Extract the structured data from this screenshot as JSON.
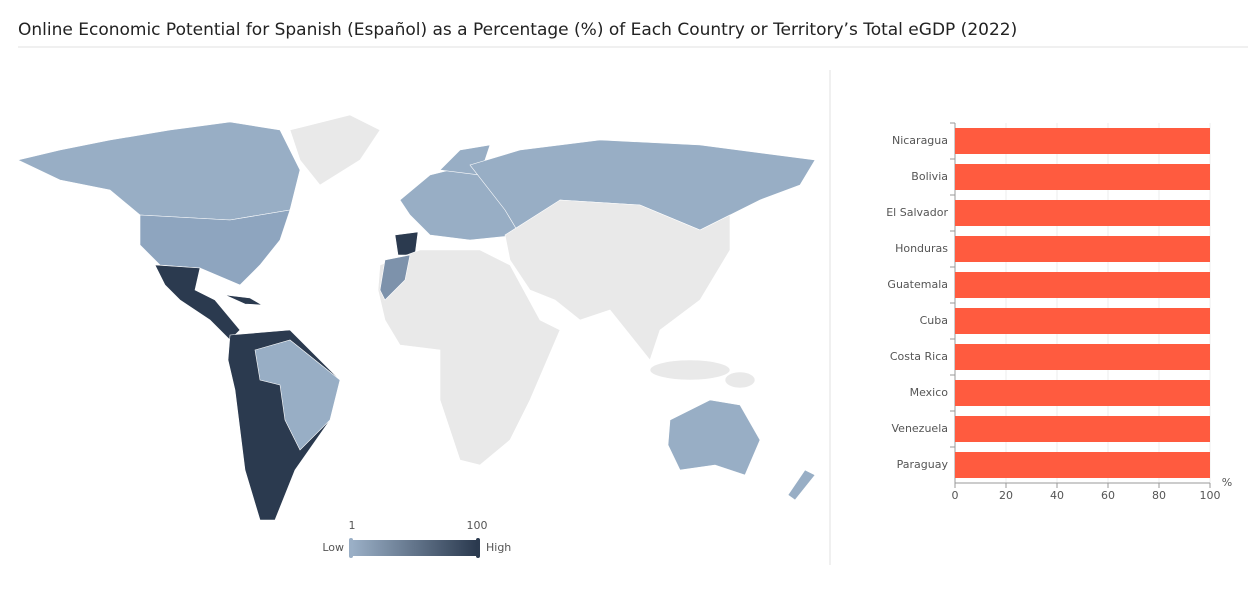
{
  "title": "Online Economic Potential for Spanish (Español) as a Percentage (%) of Each Country or Territory’s Total eGDP (2022)",
  "chart_data": [
    {
      "type": "map",
      "visual_range": [
        1,
        100
      ],
      "low_label": "Low",
      "high_label": "High",
      "colors": [
        "#9aafc6",
        "#2b3a4f"
      ]
    },
    {
      "type": "bar",
      "orientation": "horizontal",
      "categories": [
        "Nicaragua",
        "Bolivia",
        "El Salvador",
        "Honduras",
        "Guatemala",
        "Cuba",
        "Costa Rica",
        "Mexico",
        "Venezuela",
        "Paraguay"
      ],
      "values": [
        100,
        100,
        100,
        100,
        100,
        100,
        100,
        100,
        100,
        100
      ],
      "color": "#ff5b3f",
      "xlim": [
        0,
        100
      ],
      "xticks": [
        0,
        20,
        40,
        60,
        80,
        100
      ],
      "x_unit": "%",
      "grid": true
    }
  ]
}
